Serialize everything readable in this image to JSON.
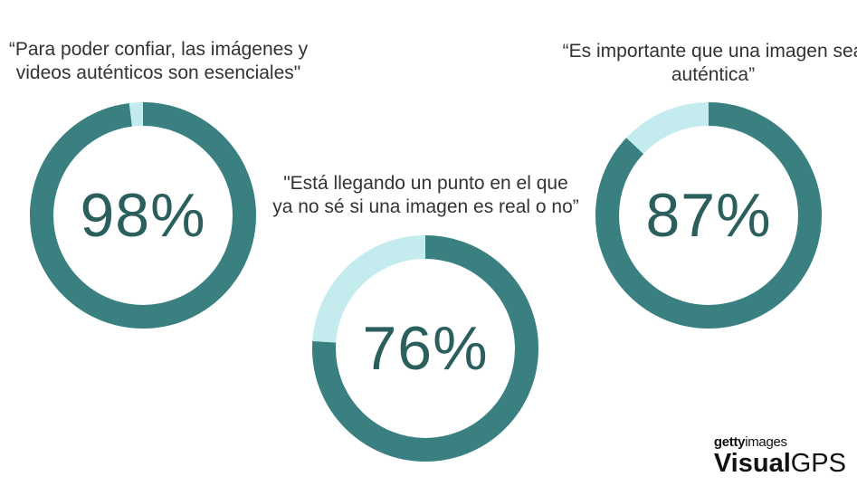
{
  "colors": {
    "filled": "#3b8080",
    "remaining": "#c4ecee",
    "text": "#2b5f5e"
  },
  "chart_data": [
    {
      "type": "pie",
      "title": "“Para poder confiar, las imágenes y videos auténticos son esenciales\"",
      "title_lines": [
        "“Para poder confiar, las imágenes y",
        "videos auténticos son esenciales\""
      ],
      "value": 98,
      "label": "98%"
    },
    {
      "type": "pie",
      "title": "\"Está llegando un punto en el que ya no sé si una imagen es real o no”",
      "title_lines": [
        "\"Está llegando un punto en el que",
        "ya no sé si una imagen es real o no”"
      ],
      "value": 76,
      "label": "76%"
    },
    {
      "type": "pie",
      "title": "“Es importante que una imagen sea auténtica”",
      "title_lines": [
        "“Es importante que una imagen sea",
        "auténtica”"
      ],
      "value": 87,
      "label": "87%"
    }
  ],
  "logo": {
    "brand_bold": "getty",
    "brand_light": "images",
    "product_bold": "Visual",
    "product_light": "GPS"
  }
}
